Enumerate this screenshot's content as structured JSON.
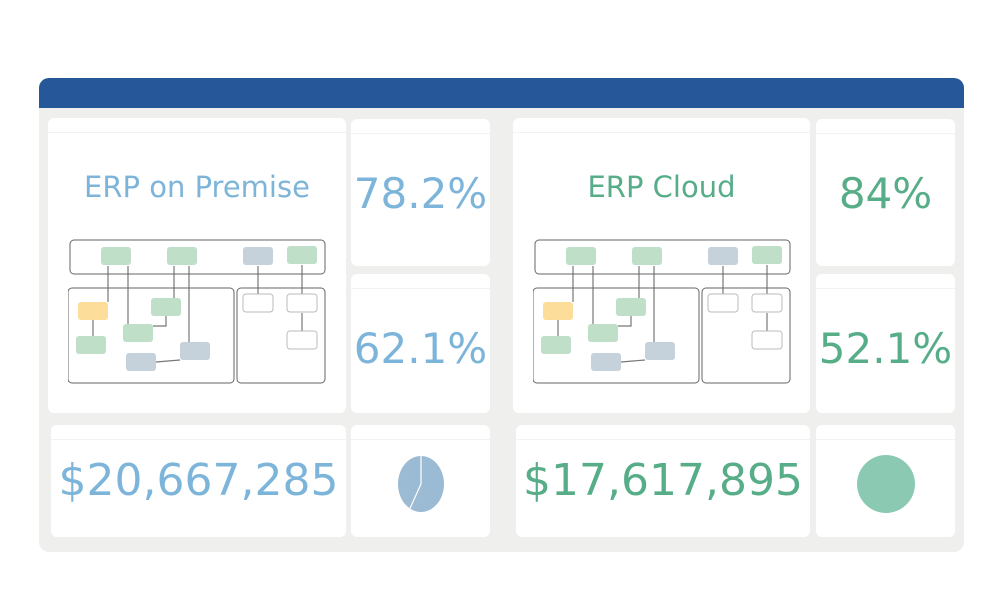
{
  "colors": {
    "header": "#265899",
    "premise": "#7db5da",
    "cloud": "#57ad88",
    "pie_premise": "#9bbad3",
    "pie_cloud": "#8bc9b2"
  },
  "premise": {
    "title": "ERP on Premise",
    "stat1": "78.2%",
    "stat2": "62.1%",
    "amount": "$20,667,285",
    "pie_fraction": 0.58
  },
  "cloud": {
    "title": "ERP Cloud",
    "stat1": "84%",
    "stat2": "52.1%",
    "amount": "$17,617,895",
    "pie_fraction": 1.0
  }
}
